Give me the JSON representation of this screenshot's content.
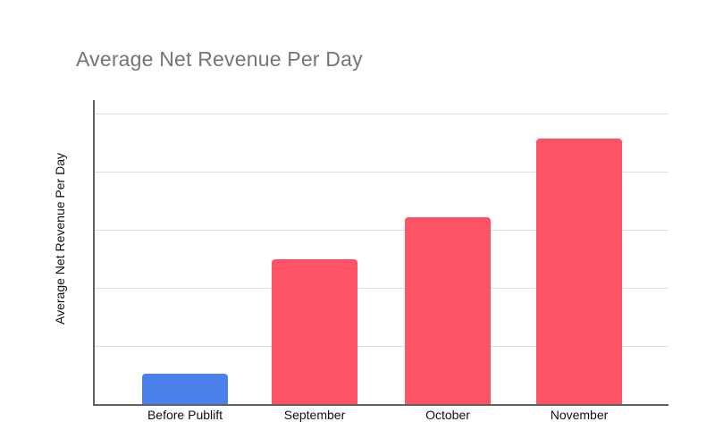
{
  "chart_data": {
    "type": "bar",
    "title": "Average Net Revenue Per Day",
    "xlabel": "",
    "ylabel": "Average Net Revenue Per Day",
    "categories": [
      "Before Publift",
      "September",
      "October",
      "November"
    ],
    "values": [
      0.52,
      2.49,
      3.22,
      4.57
    ],
    "bar_colors": [
      "#4a80ea",
      "#fd5365",
      "#fd5365",
      "#fd5365"
    ],
    "ylim": [
      0,
      5.23
    ],
    "gridline_step": 1,
    "grid": "horizontal-on",
    "legend": "none",
    "y_tick_labels": "none",
    "background": "#ffffff",
    "title_color": "#757575",
    "axis_color": "#5f5f5f",
    "gridline_color": "#dddde3",
    "text_color": "#111111"
  }
}
